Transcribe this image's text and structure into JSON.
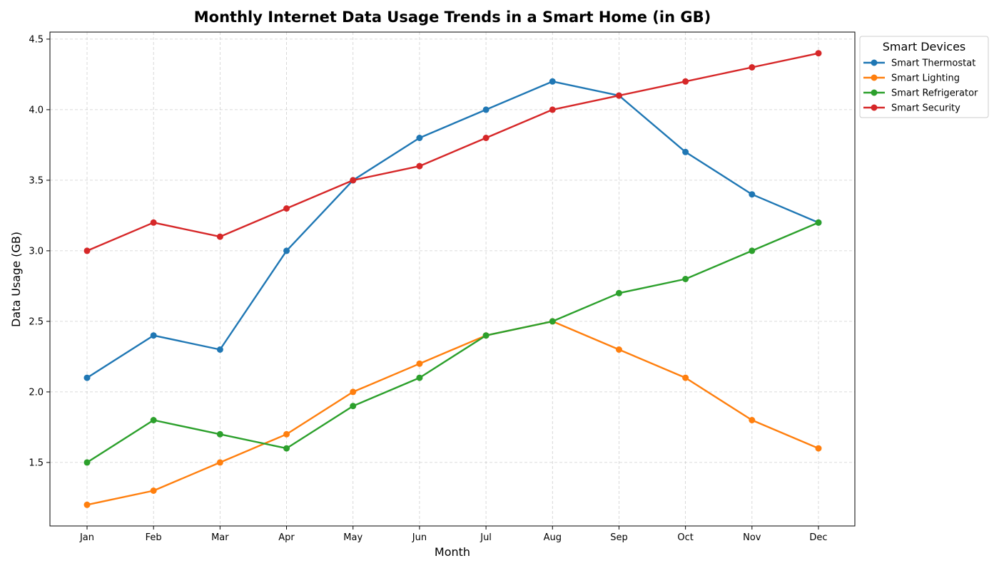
{
  "chart_data": {
    "type": "line",
    "title": "Monthly Internet Data Usage Trends in a Smart Home (in GB)",
    "xlabel": "Month",
    "ylabel": "Data Usage (GB)",
    "categories": [
      "Jan",
      "Feb",
      "Mar",
      "Apr",
      "May",
      "Jun",
      "Jul",
      "Aug",
      "Sep",
      "Oct",
      "Nov",
      "Dec"
    ],
    "ylim": [
      1.05,
      4.55
    ],
    "yticks": [
      "1.5",
      "2.0",
      "2.5",
      "3.0",
      "3.5",
      "4.0",
      "4.5"
    ],
    "grid": true,
    "legend": {
      "title": "Smart Devices",
      "placement": "outside upper-right"
    },
    "series": [
      {
        "name": "Smart Thermostat",
        "color": "#1f77b4",
        "values": [
          2.1,
          2.4,
          2.3,
          3.0,
          3.5,
          3.8,
          4.0,
          4.2,
          4.1,
          3.7,
          3.4,
          3.2
        ]
      },
      {
        "name": "Smart Lighting",
        "color": "#ff7f0e",
        "values": [
          1.2,
          1.3,
          1.5,
          1.7,
          2.0,
          2.2,
          2.4,
          2.5,
          2.3,
          2.1,
          1.8,
          1.6
        ]
      },
      {
        "name": "Smart Refrigerator",
        "color": "#2ca02c",
        "values": [
          1.5,
          1.8,
          1.7,
          1.6,
          1.9,
          2.1,
          2.4,
          2.5,
          2.7,
          2.8,
          3.0,
          3.2
        ]
      },
      {
        "name": "Smart Security",
        "color": "#d62728",
        "values": [
          3.0,
          3.2,
          3.1,
          3.3,
          3.5,
          3.6,
          3.8,
          4.0,
          4.1,
          4.2,
          4.3,
          4.4
        ]
      }
    ]
  }
}
